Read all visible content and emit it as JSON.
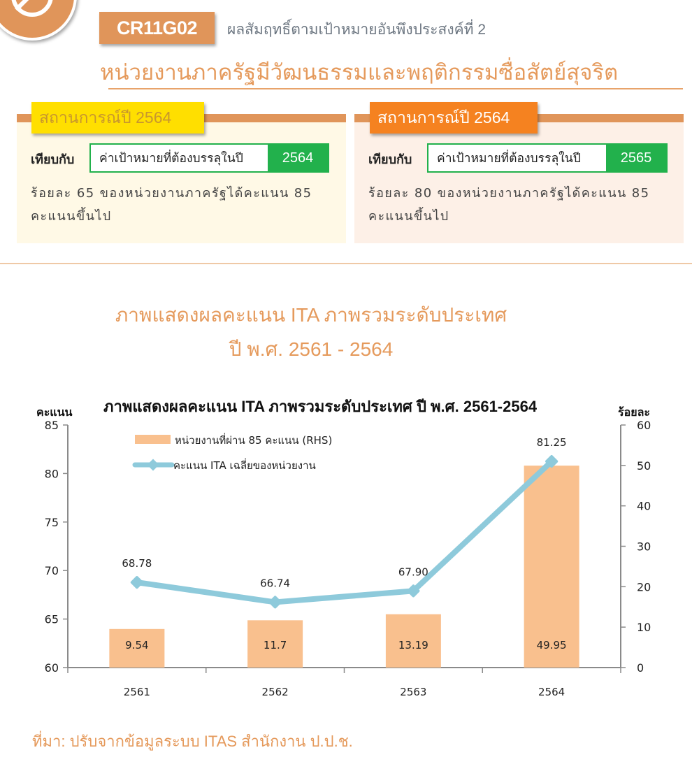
{
  "header": {
    "code": "CR11G02",
    "subtitle": "ผลสัมฤทธิ์ตามเป้าหมายอันพึงประสงค์ที่ 2",
    "title": "หน่วยงานภาครัฐมีวัฒนธรรมและพฤติกรรมซื่อสัตย์สุจริต"
  },
  "cards": [
    {
      "tag": "สถานการณ์ปี 2564",
      "compare_label": "เทียบกับ",
      "target_text": "ค่าเป้าหมายที่ต้องบรรลุในปี",
      "target_year": "2564",
      "description": "ร้อยละ 65 ของหน่วยงานภาครัฐได้คะแนน 85 คะแนนขึ้นไป",
      "tag_color": "#ffdf00"
    },
    {
      "tag": "สถานการณ์ปี 2564",
      "compare_label": "เทียบกับ",
      "target_text": "ค่าเป้าหมายที่ต้องบรรลุในปี",
      "target_year": "2565",
      "description": "ร้อยละ 80 ของหน่วยงานภาครัฐได้คะแนน 85 คะแนนขึ้นไป",
      "tag_color": "#f58220"
    }
  ],
  "section": {
    "heading_line1": "ภาพแสดงผลคะแนน ITA ภาพรวมระดับประเทศ",
    "heading_line2": "ปี พ.ศ. 2561 - 2564"
  },
  "chart_data": {
    "type": "bar+line",
    "title": "ภาพแสดงผลคะแนน ITA ภาพรวมระดับประเทศ ปี พ.ศ. 2561-2564",
    "categories": [
      "2561",
      "2562",
      "2563",
      "2564"
    ],
    "xlabel": "",
    "ylabel_left": "คะแนน",
    "ylabel_right": "ร้อยละ",
    "ylim_left": [
      60,
      85
    ],
    "yticks_left": [
      60,
      65,
      70,
      75,
      80,
      85
    ],
    "ylim_right": [
      0,
      60
    ],
    "yticks_right": [
      0,
      10,
      20,
      30,
      40,
      50,
      60
    ],
    "grid": false,
    "legend_position": "top-left inside",
    "series": [
      {
        "name": "หน่วยงานที่ผ่าน 85 คะแนน (RHS)",
        "type": "bar",
        "axis": "right",
        "color": "#f9c08e",
        "values": [
          9.54,
          11.7,
          13.19,
          49.95
        ],
        "labels": [
          "9.54",
          "11.7",
          "13.19",
          "49.95"
        ]
      },
      {
        "name": "คะแนน ITA เฉลี่ยของหน่วยงาน",
        "type": "line",
        "axis": "left",
        "color": "#8ecadb",
        "values": [
          68.78,
          66.74,
          67.9,
          81.25
        ],
        "labels": [
          "68.78",
          "66.74",
          "67.90",
          "81.25"
        ]
      }
    ]
  },
  "source": "ที่มา: ปรับจากข้อมูลระบบ ITAS สำนักงาน ป.ป.ช.",
  "colors": {
    "accent": "#e0955a",
    "title_orange": "#e59a5c",
    "green": "#22b14c",
    "bar": "#f9c08e",
    "line": "#8ecadb"
  }
}
